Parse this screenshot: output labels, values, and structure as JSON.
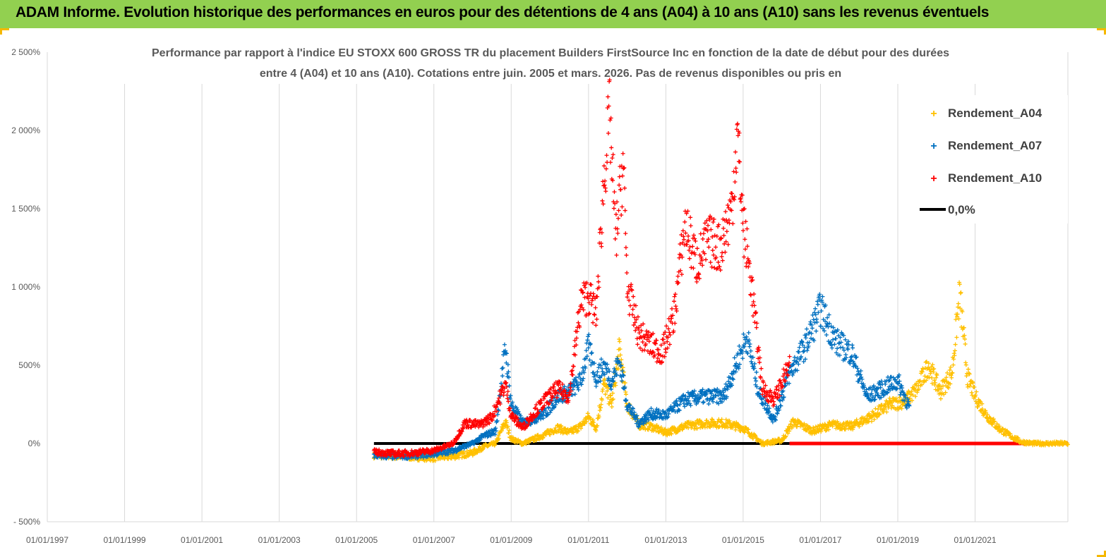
{
  "banner": {
    "title": "ADAM Informe. Evolution historique des performances en euros pour des détentions de 4 ans (A04) à 10 ans (A10) sans les revenus éventuels",
    "background": "#92d050"
  },
  "chart_data": {
    "type": "scatter",
    "title_lines": [
      "Performance par rapport à l'indice EU STOXX 600 GROSS TR  du placement Builders FirstSource Inc en fonction de la date de début pour des durées",
      "entre 4 (A04) et 10 ans (A10). Cotations entre juin. 2005 et mars. 2026. Pas de revenus disponibles ou pris en"
    ],
    "xlabel": "",
    "ylabel": "",
    "xlim": [
      1997.0,
      2023.4
    ],
    "ylim": [
      -500,
      2500
    ],
    "x_ticks": [
      "01/01/1997",
      "01/01/1999",
      "01/01/2001",
      "01/01/2003",
      "01/01/2005",
      "01/01/2007",
      "01/01/2009",
      "01/01/2011",
      "01/01/2013",
      "01/01/2015",
      "01/01/2017",
      "01/01/2019",
      "01/01/2021"
    ],
    "y_ticks": [
      "- 500%",
      "0%",
      "500%",
      "1 000%",
      "1 500%",
      "2 000%",
      "2 500%"
    ],
    "y_tick_values": [
      -500,
      0,
      500,
      1000,
      1500,
      2000,
      2500
    ],
    "grid": "vertical",
    "legend_position": "top-right",
    "series": [
      {
        "name": "Rendement_A04",
        "color": "#ffc000",
        "marker": "+",
        "x": [
          2005.45,
          2006.0,
          2006.5,
          2007.0,
          2007.5,
          2008.0,
          2008.3,
          2008.6,
          2008.85,
          2009.0,
          2009.3,
          2009.6,
          2009.9,
          2010.2,
          2010.5,
          2010.8,
          2011.0,
          2011.2,
          2011.4,
          2011.6,
          2011.8,
          2012.0,
          2012.3,
          2012.6,
          2013.0,
          2013.5,
          2014.0,
          2014.5,
          2015.0,
          2015.5,
          2016.0,
          2016.3,
          2016.8,
          2017.3,
          2017.8,
          2018.3,
          2018.8,
          2019.2,
          2019.5,
          2019.8,
          2020.1,
          2020.4,
          2020.6,
          2020.8,
          2021.0,
          2021.3,
          2021.6,
          2021.9,
          2022.2,
          2022.5,
          2022.8,
          2023.1,
          2023.4
        ],
        "values": [
          -75,
          -80,
          -85,
          -90,
          -80,
          -60,
          -20,
          0,
          140,
          30,
          0,
          30,
          60,
          100,
          70,
          110,
          170,
          100,
          380,
          250,
          600,
          250,
          120,
          110,
          70,
          110,
          130,
          130,
          100,
          0,
          20,
          140,
          80,
          120,
          110,
          170,
          250,
          270,
          350,
          500,
          330,
          450,
          950,
          430,
          300,
          180,
          100,
          50,
          10,
          0,
          0,
          0,
          0
        ]
      },
      {
        "name": "Rendement_A07",
        "color": "#0070c0",
        "marker": "+",
        "x": [
          2005.45,
          2006.0,
          2006.5,
          2007.0,
          2007.5,
          2008.0,
          2008.3,
          2008.6,
          2008.85,
          2009.0,
          2009.3,
          2009.6,
          2009.9,
          2010.2,
          2010.5,
          2010.8,
          2011.0,
          2011.2,
          2011.4,
          2011.6,
          2011.8,
          2012.0,
          2012.3,
          2012.6,
          2013.0,
          2013.5,
          2014.0,
          2014.5,
          2014.9,
          2015.1,
          2015.4,
          2015.8,
          2016.2,
          2016.6,
          2017.0,
          2017.4,
          2017.8,
          2018.2,
          2018.6,
          2019.0,
          2019.3
        ],
        "values": [
          -75,
          -80,
          -75,
          -65,
          -45,
          0,
          50,
          80,
          620,
          250,
          130,
          160,
          200,
          300,
          330,
          400,
          620,
          420,
          500,
          400,
          530,
          250,
          130,
          190,
          180,
          280,
          300,
          300,
          560,
          680,
          330,
          150,
          450,
          620,
          860,
          650,
          580,
          300,
          350,
          400,
          230
        ]
      },
      {
        "name": "Rendement_A10",
        "color": "#ff0000",
        "marker": "+",
        "x": [
          2005.45,
          2006.0,
          2006.5,
          2007.0,
          2007.5,
          2007.8,
          2008.2,
          2008.5,
          2008.85,
          2009.0,
          2009.3,
          2009.6,
          2009.9,
          2010.2,
          2010.5,
          2010.8,
          2011.0,
          2011.2,
          2011.4,
          2011.55,
          2011.7,
          2011.9,
          2012.0,
          2012.3,
          2012.6,
          2012.9,
          2013.2,
          2013.5,
          2013.8,
          2014.1,
          2014.4,
          2014.7,
          2014.85,
          2015.0,
          2015.2,
          2015.5,
          2015.8,
          2016.2
        ],
        "values": [
          -55,
          -65,
          -60,
          -45,
          0,
          130,
          120,
          170,
          380,
          180,
          100,
          200,
          280,
          350,
          300,
          900,
          950,
          820,
          1700,
          2100,
          1300,
          1800,
          1000,
          700,
          630,
          580,
          800,
          1400,
          1150,
          1300,
          1250,
          1500,
          1980,
          1400,
          1050,
          350,
          280,
          500
        ]
      },
      {
        "name": "0,0%",
        "color": "#000000",
        "type": "line",
        "x": [
          2005.45,
          2016.2
        ],
        "values": [
          0,
          0
        ]
      }
    ],
    "extra_series_segment": {
      "name": "Rendement_A10 flat",
      "color": "#ff0000",
      "x": [
        2016.2,
        2023.4
      ],
      "values": [
        0,
        0
      ]
    },
    "legend": [
      {
        "label": "Rendement_A04",
        "color": "#ffc000",
        "marker": "+"
      },
      {
        "label": "Rendement_A07",
        "color": "#0070c0",
        "marker": "+"
      },
      {
        "label": "Rendement_A10",
        "color": "#ff0000",
        "marker": "+"
      },
      {
        "label": "0,0%",
        "color": "#000000",
        "marker": "line"
      }
    ],
    "colors": {
      "grid": "#d9d9d9",
      "axis_text": "#595959",
      "title": "#595959"
    }
  }
}
